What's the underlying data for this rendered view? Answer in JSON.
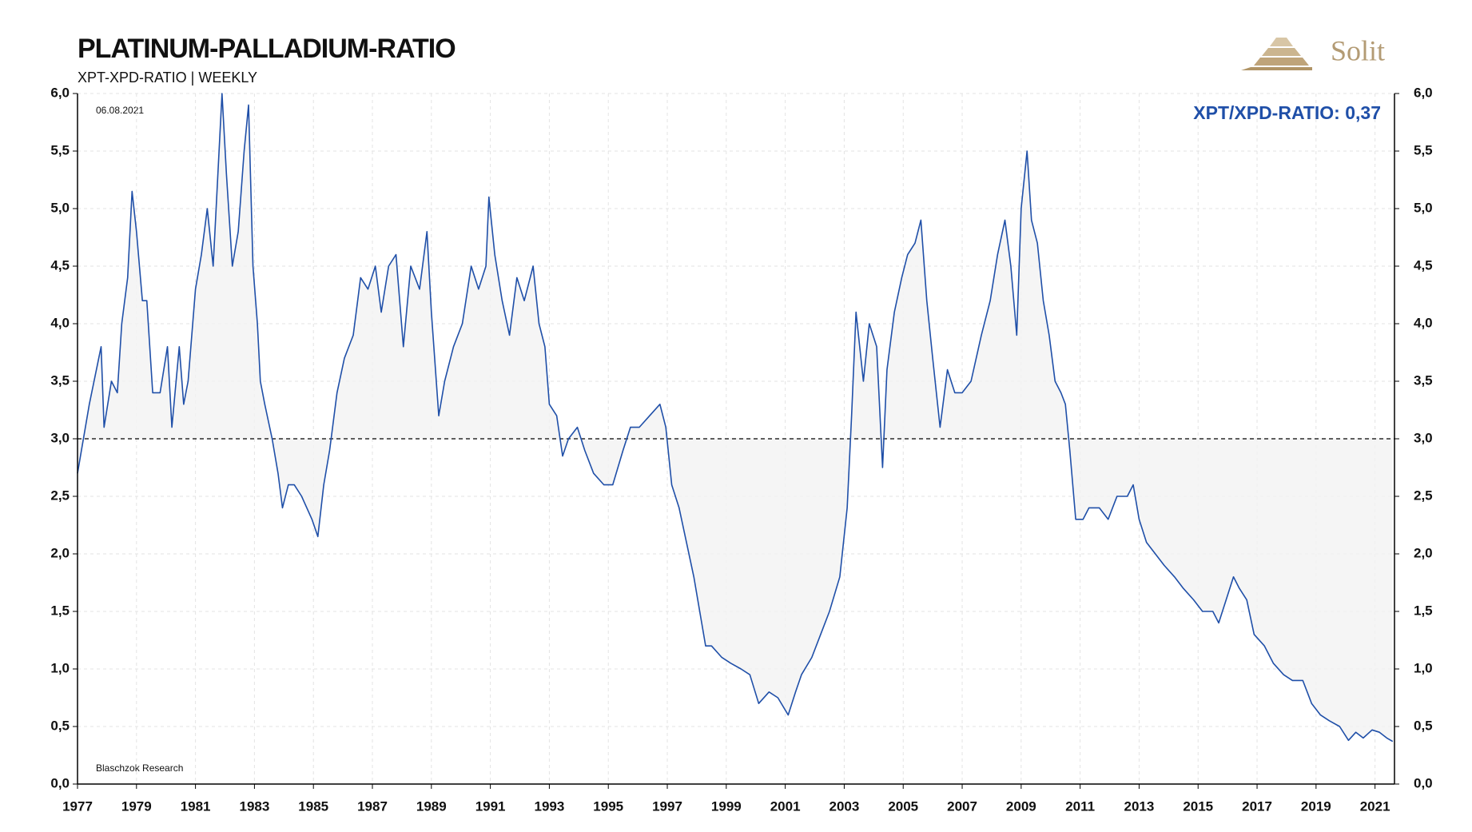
{
  "chart_data": {
    "type": "line",
    "title": "PLATINUM-PALLADIUM-RATIO",
    "subtitle": "XPT-XPD-RATIO | WEEKLY",
    "date_note": "06.08.2021",
    "source": "Blaschzok Research",
    "annotation": "XPT/XPD-RATIO: 0,37",
    "logo": "Solit",
    "grid": true,
    "reference_line": 3,
    "xlim": [
      1977,
      2021.66
    ],
    "xticks": [
      1977,
      1979,
      1981,
      1983,
      1985,
      1987,
      1989,
      1991,
      1993,
      1995,
      1997,
      1999,
      2001,
      2003,
      2005,
      2007,
      2009,
      2011,
      2013,
      2015,
      2017,
      2019,
      2021
    ],
    "ylim": [
      0,
      6
    ],
    "yticks": [
      {
        "value": 0,
        "label": "0,0"
      },
      {
        "value": 0.5,
        "label": "0,5"
      },
      {
        "value": 1,
        "label": "1,0"
      },
      {
        "value": 1.5,
        "label": "1,5"
      },
      {
        "value": 2,
        "label": "2,0"
      },
      {
        "value": 2.5,
        "label": "2,5"
      },
      {
        "value": 3,
        "label": "3,0"
      },
      {
        "value": 3.5,
        "label": "3,5"
      },
      {
        "value": 4,
        "label": "4,0"
      },
      {
        "value": 4.5,
        "label": "4,5"
      },
      {
        "value": 5,
        "label": "5,0"
      },
      {
        "value": 5.5,
        "label": "5,5"
      },
      {
        "value": 6,
        "label": "6,0"
      }
    ],
    "series": [
      {
        "name": "XPT/XPD-RATIO",
        "color": "#1f4fa8",
        "x": [
          1977.0,
          1977.4,
          1977.8,
          1977.9,
          1978.15,
          1978.35,
          1978.5,
          1978.7,
          1978.85,
          1979.0,
          1979.2,
          1979.35,
          1979.55,
          1979.8,
          1980.05,
          1980.2,
          1980.45,
          1980.6,
          1980.75,
          1981.0,
          1981.2,
          1981.4,
          1981.6,
          1981.8,
          1981.9,
          1982.05,
          1982.25,
          1982.45,
          1982.65,
          1982.8,
          1982.95,
          1983.1,
          1983.2,
          1983.35,
          1983.6,
          1983.8,
          1983.95,
          1984.15,
          1984.35,
          1984.6,
          1984.95,
          1985.15,
          1985.35,
          1985.55,
          1985.8,
          1986.05,
          1986.35,
          1986.6,
          1986.85,
          1987.1,
          1987.3,
          1987.55,
          1987.8,
          1988.05,
          1988.3,
          1988.6,
          1988.85,
          1989.0,
          1989.25,
          1989.45,
          1989.75,
          1990.05,
          1990.35,
          1990.6,
          1990.85,
          1990.95,
          1991.15,
          1991.4,
          1991.65,
          1991.9,
          1992.15,
          1992.45,
          1992.65,
          1992.85,
          1993.0,
          1993.25,
          1993.45,
          1993.65,
          1993.95,
          1994.2,
          1994.5,
          1994.85,
          1995.15,
          1995.5,
          1995.75,
          1996.05,
          1996.4,
          1996.75,
          1996.95,
          1997.15,
          1997.4,
          1997.65,
          1997.9,
          1998.1,
          1998.3,
          1998.5,
          1998.85,
          1999.15,
          1999.5,
          1999.8,
          2000.1,
          2000.45,
          2000.75,
          2001.1,
          2001.35,
          2001.55,
          2001.9,
          2002.2,
          2002.5,
          2002.85,
          2003.1,
          2003.25,
          2003.4,
          2003.65,
          2003.85,
          2004.1,
          2004.3,
          2004.45,
          2004.7,
          2004.95,
          2005.15,
          2005.4,
          2005.6,
          2005.8,
          2006.0,
          2006.25,
          2006.5,
          2006.75,
          2007.0,
          2007.3,
          2007.65,
          2007.95,
          2008.2,
          2008.45,
          2008.65,
          2008.85,
          2009.0,
          2009.2,
          2009.35,
          2009.55,
          2009.75,
          2009.95,
          2010.15,
          2010.35,
          2010.5,
          2010.65,
          2010.85,
          2011.1,
          2011.3,
          2011.65,
          2011.95,
          2012.25,
          2012.6,
          2012.8,
          2013.0,
          2013.25,
          2013.55,
          2013.85,
          2014.2,
          2014.5,
          2014.85,
          2015.15,
          2015.5,
          2015.7,
          2015.95,
          2016.2,
          2016.4,
          2016.65,
          2016.9,
          2017.25,
          2017.55,
          2017.9,
          2018.2,
          2018.55,
          2018.85,
          2019.15,
          2019.45,
          2019.8,
          2020.1,
          2020.35,
          2020.6,
          2020.9,
          2021.15,
          2021.4,
          2021.6
        ],
        "values": [
          2.7,
          3.3,
          3.8,
          3.1,
          3.5,
          3.4,
          4.0,
          4.4,
          5.15,
          4.8,
          4.2,
          4.2,
          3.4,
          3.4,
          3.8,
          3.1,
          3.8,
          3.3,
          3.5,
          4.3,
          4.6,
          5.0,
          4.5,
          5.5,
          6.0,
          5.3,
          4.5,
          4.8,
          5.5,
          5.9,
          4.5,
          4.0,
          3.5,
          3.3,
          3.0,
          2.7,
          2.4,
          2.6,
          2.6,
          2.5,
          2.3,
          2.15,
          2.6,
          2.9,
          3.4,
          3.7,
          3.9,
          4.4,
          4.3,
          4.5,
          4.1,
          4.5,
          4.6,
          3.8,
          4.5,
          4.3,
          4.8,
          4.1,
          3.2,
          3.5,
          3.8,
          4.0,
          4.5,
          4.3,
          4.5,
          5.1,
          4.6,
          4.2,
          3.9,
          4.4,
          4.2,
          4.5,
          4.0,
          3.8,
          3.3,
          3.2,
          2.85,
          3.0,
          3.1,
          2.9,
          2.7,
          2.6,
          2.6,
          2.9,
          3.1,
          3.1,
          3.2,
          3.3,
          3.1,
          2.6,
          2.4,
          2.1,
          1.8,
          1.5,
          1.2,
          1.2,
          1.1,
          1.05,
          1.0,
          0.95,
          0.7,
          0.8,
          0.75,
          0.6,
          0.8,
          0.95,
          1.1,
          1.3,
          1.5,
          1.8,
          2.4,
          3.2,
          4.1,
          3.5,
          4.0,
          3.8,
          2.75,
          3.6,
          4.1,
          4.4,
          4.6,
          4.7,
          4.9,
          4.2,
          3.7,
          3.1,
          3.6,
          3.4,
          3.4,
          3.5,
          3.9,
          4.2,
          4.6,
          4.9,
          4.5,
          3.9,
          5.0,
          5.5,
          4.9,
          4.7,
          4.2,
          3.9,
          3.5,
          3.4,
          3.3,
          2.9,
          2.3,
          2.3,
          2.4,
          2.4,
          2.3,
          2.5,
          2.5,
          2.6,
          2.3,
          2.1,
          2.0,
          1.9,
          1.8,
          1.7,
          1.6,
          1.5,
          1.5,
          1.4,
          1.6,
          1.8,
          1.7,
          1.6,
          1.3,
          1.2,
          1.05,
          0.95,
          0.9,
          0.9,
          0.7,
          0.6,
          0.55,
          0.5,
          0.38,
          0.45,
          0.4,
          0.47,
          0.45,
          0.4,
          0.37
        ]
      }
    ]
  }
}
